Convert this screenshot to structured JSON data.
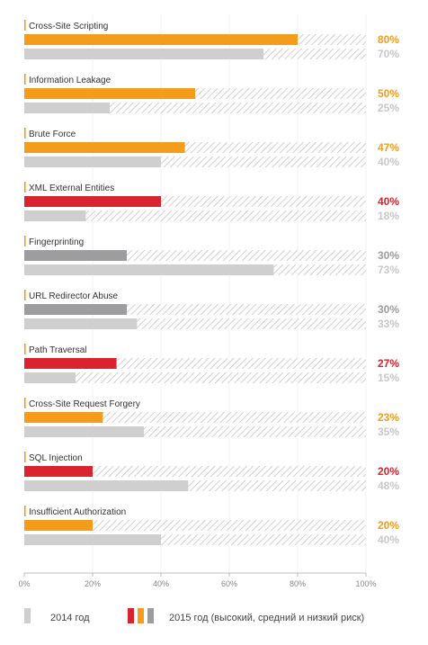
{
  "chart_data": {
    "type": "bar",
    "orientation": "horizontal",
    "xlim": [
      0,
      100
    ],
    "x_ticks": [
      "0%",
      "20%",
      "40%",
      "60%",
      "80%",
      "100%"
    ],
    "categories": [
      "Cross-Site Scripting",
      "Information Leakage",
      "Brute Force",
      "XML External Entities",
      "Fingerprinting",
      "URL Redirector Abuse",
      "Path Traversal",
      "Cross-Site Request Forgery",
      "SQL Injection",
      "Insufficient Authorization"
    ],
    "series": [
      {
        "name": "2015 год (высокий, средний и низкий риск)",
        "values": [
          80,
          50,
          47,
          40,
          30,
          30,
          27,
          23,
          20,
          20
        ],
        "value_labels": [
          "80%",
          "50%",
          "47%",
          "40%",
          "30%",
          "30%",
          "27%",
          "23%",
          "20%",
          "20%"
        ],
        "risk": [
          "medium",
          "medium",
          "medium",
          "high",
          "low",
          "low",
          "high",
          "medium",
          "high",
          "medium"
        ]
      },
      {
        "name": "2014 год",
        "values": [
          70,
          25,
          40,
          18,
          73,
          33,
          15,
          35,
          48,
          40
        ],
        "value_labels": [
          "70%",
          "25%",
          "40%",
          "18%",
          "73%",
          "33%",
          "15%",
          "35%",
          "48%",
          "40%"
        ]
      }
    ],
    "colors": {
      "high": "#d7242f",
      "medium": "#f59c1a",
      "low": "#9d9d9f",
      "y2014": "#cfcfd0",
      "hatch": "#c4c4c4",
      "label_2014": "#c8c8c8",
      "axis": "#aaaaaa"
    },
    "legend": {
      "label_2014": "2014 год",
      "label_2015": "2015 год (высокий, средний и низкий риск)",
      "placement": "bottom"
    }
  }
}
